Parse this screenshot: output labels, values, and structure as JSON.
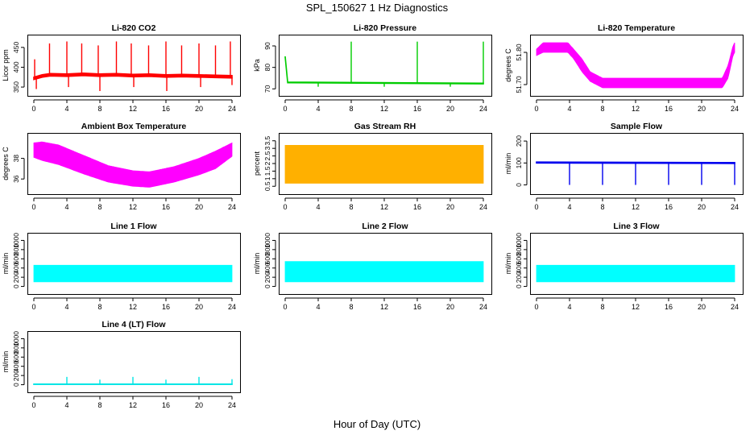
{
  "figure": {
    "title": "SPL_150627  1 Hz Diagnostics",
    "xlabel": "Hour of Day (UTC)"
  },
  "chart_data": [
    {
      "id": "co2",
      "type": "line",
      "title": "Li-820 CO2",
      "ylabel": "Licor ppm",
      "color": "#ff0000",
      "xlim": [
        0,
        24
      ],
      "xticks": [
        0,
        4,
        8,
        12,
        16,
        20,
        24
      ],
      "ylim": [
        340,
        470
      ],
      "yticks": [
        350,
        400,
        450
      ],
      "series": [
        {
          "x": [
            0,
            1,
            2,
            4,
            6,
            8,
            10,
            12,
            14,
            16,
            18,
            20,
            22,
            24
          ],
          "y": [
            372,
            378,
            381,
            380,
            382,
            380,
            381,
            379,
            380,
            378,
            379,
            378,
            377,
            376
          ]
        }
      ],
      "band": 6,
      "spikes": [
        [
          0.1,
          420
        ],
        [
          0.3,
          345
        ],
        [
          1.9,
          460
        ],
        [
          4.0,
          465
        ],
        [
          4.2,
          350
        ],
        [
          5.8,
          460
        ],
        [
          7.8,
          455
        ],
        [
          8.0,
          340
        ],
        [
          10.0,
          465
        ],
        [
          11.8,
          460
        ],
        [
          12.1,
          350
        ],
        [
          13.9,
          455
        ],
        [
          16.0,
          465
        ],
        [
          16.1,
          340
        ],
        [
          17.9,
          455
        ],
        [
          20.0,
          460
        ],
        [
          20.2,
          350
        ],
        [
          22.0,
          455
        ],
        [
          23.8,
          465
        ],
        [
          24.0,
          355
        ]
      ]
    },
    {
      "id": "pressure",
      "type": "line",
      "title": "Li-820 Pressure",
      "ylabel": "kPa",
      "color": "#00cc00",
      "xlim": [
        0,
        24
      ],
      "xticks": [
        0,
        4,
        8,
        12,
        16,
        20,
        24
      ],
      "ylim": [
        69,
        93
      ],
      "yticks": [
        70,
        80,
        90
      ],
      "series": [
        {
          "x": [
            0,
            0.3,
            24
          ],
          "y": [
            85,
            73,
            72.5
          ]
        }
      ],
      "band": 0.3,
      "spikes": [
        [
          4.0,
          71
        ],
        [
          8.0,
          92
        ],
        [
          12.0,
          71
        ],
        [
          16.0,
          92
        ],
        [
          20.0,
          71
        ],
        [
          24.0,
          92
        ]
      ]
    },
    {
      "id": "temperature",
      "type": "area",
      "title": "Li-820 Temperature",
      "ylabel": "degrees C",
      "color": "#ff00ff",
      "xlim": [
        0,
        24
      ],
      "xticks": [
        0,
        4,
        8,
        12,
        16,
        20,
        24
      ],
      "ylim": [
        51.68,
        51.84
      ],
      "yticks": [
        51.7,
        51.8
      ],
      "upper": [
        [
          0,
          51.81
        ],
        [
          0.8,
          51.83
        ],
        [
          3.8,
          51.83
        ],
        [
          4.5,
          51.81
        ],
        [
          5.5,
          51.78
        ],
        [
          6.5,
          51.74
        ],
        [
          8,
          51.72
        ],
        [
          22.5,
          51.72
        ],
        [
          23.2,
          51.76
        ],
        [
          23.8,
          51.82
        ],
        [
          24,
          51.83
        ]
      ],
      "lower": [
        [
          0,
          51.79
        ],
        [
          0.8,
          51.8
        ],
        [
          3.8,
          51.8
        ],
        [
          4.5,
          51.78
        ],
        [
          5.5,
          51.74
        ],
        [
          6.5,
          51.71
        ],
        [
          8,
          51.69
        ],
        [
          22.5,
          51.69
        ],
        [
          23.2,
          51.72
        ],
        [
          23.8,
          51.79
        ],
        [
          24,
          51.8
        ]
      ]
    },
    {
      "id": "ambient",
      "type": "area",
      "title": "Ambient Box Temperature",
      "ylabel": "degrees C",
      "color": "#ff00ff",
      "xlim": [
        0,
        24
      ],
      "xticks": [
        0,
        4,
        8,
        12,
        16,
        20,
        24
      ],
      "ylim": [
        35,
        40
      ],
      "yticks": [
        36,
        38
      ],
      "upper": [
        [
          0,
          39.5
        ],
        [
          1,
          39.6
        ],
        [
          3,
          39.3
        ],
        [
          6,
          38.3
        ],
        [
          9,
          37.3
        ],
        [
          12,
          36.8
        ],
        [
          14,
          36.7
        ],
        [
          17,
          37.2
        ],
        [
          20,
          38.0
        ],
        [
          22,
          38.7
        ],
        [
          24,
          39.5
        ]
      ],
      "lower": [
        [
          0,
          38.1
        ],
        [
          1,
          37.8
        ],
        [
          3,
          37.4
        ],
        [
          6,
          36.5
        ],
        [
          9,
          35.7
        ],
        [
          12,
          35.3
        ],
        [
          14,
          35.2
        ],
        [
          17,
          35.7
        ],
        [
          20,
          36.4
        ],
        [
          22,
          37.0
        ],
        [
          24,
          38.2
        ]
      ]
    },
    {
      "id": "rh",
      "type": "area",
      "title": "Gas Stream RH",
      "ylabel": "percent",
      "color": "#ffb000",
      "xlim": [
        0,
        24
      ],
      "xticks": [
        0,
        4,
        8,
        12,
        16,
        20,
        24
      ],
      "ylim": [
        0.3,
        3.7
      ],
      "yticks": [
        0.5,
        1,
        1.5,
        2,
        2.5,
        3,
        3.5
      ],
      "upper": [
        [
          0,
          3.2
        ],
        [
          24,
          3.2
        ]
      ],
      "lower": [
        [
          0,
          0.7
        ],
        [
          24,
          0.7
        ]
      ]
    },
    {
      "id": "sample",
      "type": "line",
      "title": "Sample Flow",
      "ylabel": "ml/min",
      "color": "#0000ee",
      "xlim": [
        0,
        24
      ],
      "xticks": [
        0,
        4,
        8,
        12,
        16,
        20,
        24
      ],
      "ylim": [
        -20,
        215
      ],
      "yticks": [
        0,
        100,
        200
      ],
      "series": [
        {
          "x": [
            0,
            24
          ],
          "y": [
            102,
            100
          ]
        }
      ],
      "band": 4,
      "spikes": [
        [
          4.0,
          0
        ],
        [
          8.0,
          0
        ],
        [
          12.0,
          0
        ],
        [
          16.0,
          0
        ],
        [
          20.0,
          0
        ],
        [
          24.0,
          0
        ]
      ]
    },
    {
      "id": "line1",
      "type": "area",
      "title": "Line 1 Flow",
      "ylabel": "ml/min",
      "color": "#00ffff",
      "xlim": [
        0,
        24
      ],
      "xticks": [
        0,
        4,
        8,
        12,
        16,
        20,
        24
      ],
      "ylim": [
        -60,
        1060
      ],
      "yticks": [
        0,
        200,
        400,
        600,
        800,
        1000
      ],
      "upper": [
        [
          0,
          460
        ],
        [
          24,
          460
        ]
      ],
      "lower": [
        [
          0,
          100
        ],
        [
          24,
          100
        ]
      ]
    },
    {
      "id": "line2",
      "type": "area",
      "title": "Line 2 Flow",
      "ylabel": "ml/min",
      "color": "#00ffff",
      "xlim": [
        0,
        24
      ],
      "xticks": [
        0,
        4,
        8,
        12,
        16,
        20,
        24
      ],
      "ylim": [
        -60,
        1060
      ],
      "yticks": [
        0,
        200,
        400,
        600,
        800,
        1000
      ],
      "upper": [
        [
          0,
          540
        ],
        [
          24,
          540
        ]
      ],
      "lower": [
        [
          0,
          100
        ],
        [
          24,
          100
        ]
      ]
    },
    {
      "id": "line3",
      "type": "area",
      "title": "Line 3 Flow",
      "ylabel": "ml/min",
      "color": "#00ffff",
      "xlim": [
        0,
        24
      ],
      "xticks": [
        0,
        4,
        8,
        12,
        16,
        20,
        24
      ],
      "ylim": [
        -60,
        1060
      ],
      "yticks": [
        0,
        200,
        400,
        600,
        800,
        1000
      ],
      "upper": [
        [
          0,
          460
        ],
        [
          24,
          460
        ]
      ],
      "lower": [
        [
          0,
          100
        ],
        [
          24,
          100
        ]
      ]
    },
    {
      "id": "line4",
      "type": "line",
      "title": "Line 4 (LT) Flow",
      "ylabel": "ml/min",
      "color": "#00e5e5",
      "xlim": [
        0,
        24
      ],
      "xticks": [
        0,
        4,
        8,
        12,
        16,
        20,
        24
      ],
      "ylim": [
        -60,
        1060
      ],
      "yticks": [
        0,
        200,
        400,
        600,
        800,
        1000
      ],
      "series": [
        {
          "x": [
            0,
            24
          ],
          "y": [
            10,
            10
          ]
        }
      ],
      "band": 6,
      "spikes": [
        [
          4.0,
          170
        ],
        [
          8.0,
          110
        ],
        [
          12.0,
          170
        ],
        [
          16.0,
          110
        ],
        [
          20.0,
          170
        ],
        [
          24.0,
          120
        ]
      ]
    }
  ]
}
